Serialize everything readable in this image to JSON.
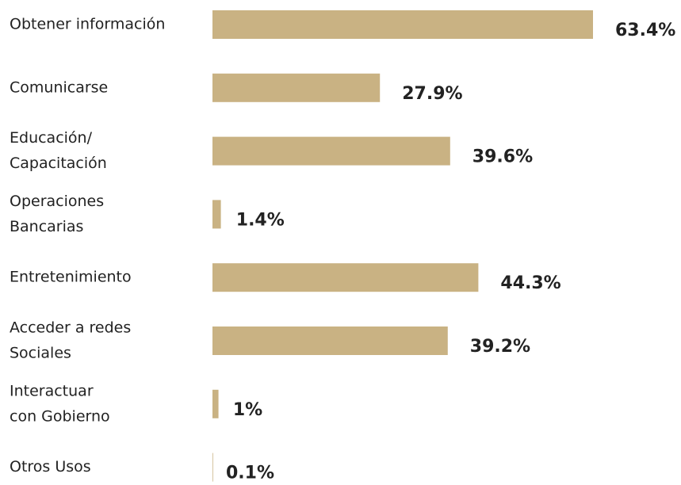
{
  "chart_data": {
    "type": "bar",
    "orientation": "horizontal",
    "categories": [
      [
        "Obtener información"
      ],
      [
        "Comunicarse"
      ],
      [
        "Educación/",
        "Capacitación"
      ],
      [
        "Operaciones",
        "Bancarias"
      ],
      [
        "Entretenimiento"
      ],
      [
        "Acceder a redes",
        "Sociales"
      ],
      [
        "Interactuar",
        "con Gobierno"
      ],
      [
        "Otros Usos"
      ]
    ],
    "values": [
      63.4,
      27.9,
      39.6,
      1.4,
      44.3,
      39.2,
      1,
      0.1
    ],
    "value_labels": [
      "63.4%",
      "27.9%",
      "39.6%",
      "1.4%",
      "44.3%",
      "39.2%",
      "1%",
      "0.1%"
    ],
    "color": "#c9b283"
  }
}
